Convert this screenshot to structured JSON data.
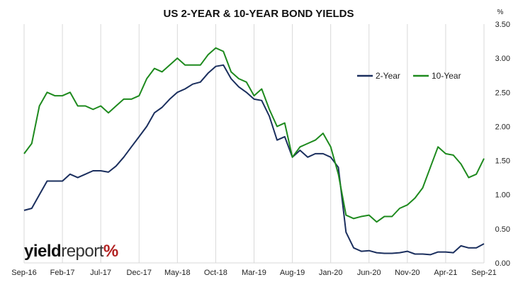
{
  "chart_data": {
    "type": "line",
    "title": "US 2-YEAR & 10-YEAR BOND YIELDS",
    "unit": "%",
    "ylim": [
      0,
      3.5
    ],
    "y_ticks": [
      "0.00",
      "0.50",
      "1.00",
      "1.50",
      "2.00",
      "2.50",
      "3.00",
      "3.50"
    ],
    "x_ticks": [
      "Sep-16",
      "Feb-17",
      "Jul-17",
      "Dec-17",
      "May-18",
      "Oct-18",
      "Mar-19",
      "Aug-19",
      "Jan-20",
      "Jun-20",
      "Nov-20",
      "Apr-21",
      "Sep-21"
    ],
    "grid": "vertical",
    "legend_position": "upper-right",
    "x": [
      "2016-09",
      "2016-10",
      "2016-11",
      "2016-12",
      "2017-01",
      "2017-02",
      "2017-03",
      "2017-04",
      "2017-05",
      "2017-06",
      "2017-07",
      "2017-08",
      "2017-09",
      "2017-10",
      "2017-11",
      "2017-12",
      "2018-01",
      "2018-02",
      "2018-03",
      "2018-04",
      "2018-05",
      "2018-06",
      "2018-07",
      "2018-08",
      "2018-09",
      "2018-10",
      "2018-11",
      "2018-12",
      "2019-01",
      "2019-02",
      "2019-03",
      "2019-04",
      "2019-05",
      "2019-06",
      "2019-07",
      "2019-08",
      "2019-09",
      "2019-10",
      "2019-11",
      "2019-12",
      "2020-01",
      "2020-02",
      "2020-03",
      "2020-04",
      "2020-05",
      "2020-06",
      "2020-07",
      "2020-08",
      "2020-09",
      "2020-10",
      "2020-11",
      "2020-12",
      "2021-01",
      "2021-02",
      "2021-03",
      "2021-04",
      "2021-05",
      "2021-06",
      "2021-07",
      "2021-08",
      "2021-09"
    ],
    "series": [
      {
        "name": "2-Year",
        "color": "#1b2f5e",
        "values": [
          0.77,
          0.8,
          1.0,
          1.2,
          1.2,
          1.2,
          1.3,
          1.25,
          1.3,
          1.35,
          1.35,
          1.33,
          1.42,
          1.55,
          1.7,
          1.85,
          2.0,
          2.2,
          2.28,
          2.4,
          2.5,
          2.55,
          2.62,
          2.65,
          2.78,
          2.88,
          2.9,
          2.7,
          2.58,
          2.5,
          2.4,
          2.38,
          2.15,
          1.8,
          1.85,
          1.55,
          1.65,
          1.55,
          1.6,
          1.6,
          1.55,
          1.4,
          0.45,
          0.22,
          0.17,
          0.18,
          0.15,
          0.14,
          0.14,
          0.15,
          0.17,
          0.13,
          0.13,
          0.12,
          0.16,
          0.16,
          0.15,
          0.25,
          0.22,
          0.22,
          0.28
        ]
      },
      {
        "name": "10-Year",
        "color": "#1e8a1e",
        "values": [
          1.6,
          1.75,
          2.3,
          2.5,
          2.45,
          2.45,
          2.5,
          2.3,
          2.3,
          2.25,
          2.3,
          2.2,
          2.3,
          2.4,
          2.4,
          2.45,
          2.7,
          2.85,
          2.8,
          2.9,
          3.0,
          2.9,
          2.9,
          2.9,
          3.05,
          3.15,
          3.1,
          2.8,
          2.7,
          2.65,
          2.45,
          2.55,
          2.25,
          2.0,
          2.05,
          1.55,
          1.7,
          1.75,
          1.8,
          1.9,
          1.7,
          1.3,
          0.7,
          0.65,
          0.68,
          0.7,
          0.6,
          0.68,
          0.68,
          0.8,
          0.85,
          0.95,
          1.1,
          1.4,
          1.7,
          1.6,
          1.58,
          1.45,
          1.25,
          1.3,
          1.53
        ]
      }
    ],
    "watermark": {
      "part1": "yield",
      "part2": "report",
      "part3": "%"
    }
  }
}
